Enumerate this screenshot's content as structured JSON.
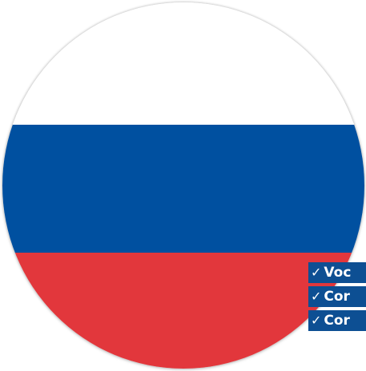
{
  "flag": {
    "colors": {
      "white": "#ffffff",
      "blue": "#0050a0",
      "red": "#e2373c"
    }
  },
  "checklist": {
    "badge_color": "#0d4f93",
    "check_symbol": "✓",
    "items": [
      {
        "label": "Voc"
      },
      {
        "label": "Cor"
      },
      {
        "label": "Cor"
      }
    ]
  }
}
